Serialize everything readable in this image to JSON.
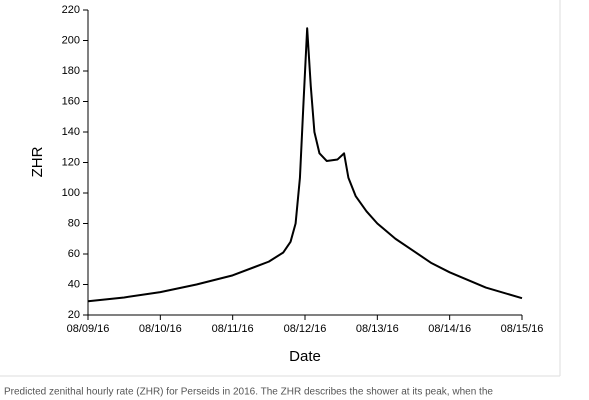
{
  "chart_data": {
    "type": "line",
    "x_label": "Date",
    "y_label": "ZHR",
    "x": [
      0,
      0.5,
      1,
      1.5,
      2,
      2.5,
      2.7,
      2.8,
      2.87,
      2.93,
      2.98,
      3.03,
      3.08,
      3.13,
      3.2,
      3.3,
      3.45,
      3.54,
      3.6,
      3.7,
      3.85,
      4,
      4.25,
      4.5,
      4.75,
      5,
      5.5,
      6
    ],
    "series": [
      {
        "name": "ZHR",
        "color": "#000000",
        "values": [
          29,
          31.5,
          35,
          40,
          46,
          55,
          61,
          68,
          80,
          110,
          160,
          208,
          170,
          140,
          126,
          121,
          122,
          126,
          110,
          98,
          88,
          80,
          70,
          62,
          54,
          48,
          38,
          31
        ]
      }
    ],
    "xlim": [
      0,
      6
    ],
    "xticks": [
      {
        "value": 0,
        "label": "08/09/16"
      },
      {
        "value": 1,
        "label": "08/10/16"
      },
      {
        "value": 2,
        "label": "08/11/16"
      },
      {
        "value": 3,
        "label": "08/12/16"
      },
      {
        "value": 4,
        "label": "08/13/16"
      },
      {
        "value": 5,
        "label": "08/14/16"
      },
      {
        "value": 6,
        "label": "08/15/16"
      }
    ],
    "ylim": [
      20,
      220
    ],
    "yticks": [
      20,
      40,
      60,
      80,
      100,
      120,
      140,
      160,
      180,
      200,
      220
    ]
  },
  "caption": "Predicted zenithal hourly rate (ZHR) for Perseids in 2016. The ZHR describes the shower at its peak, when the"
}
